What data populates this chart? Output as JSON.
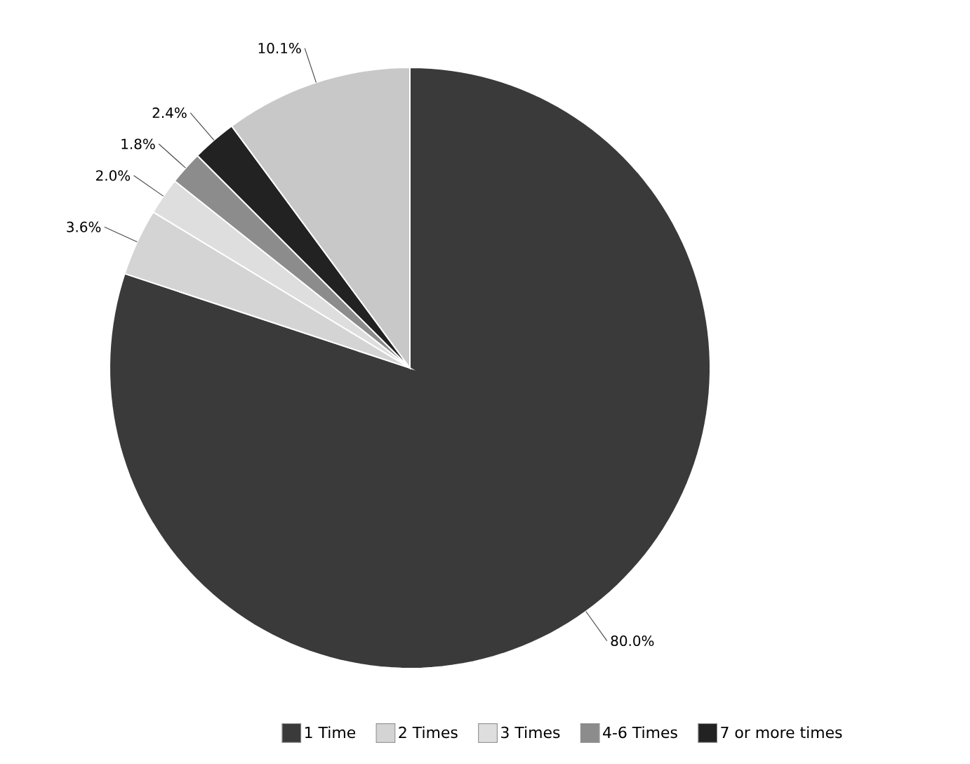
{
  "chart_data": {
    "type": "pie",
    "categories": [
      "1 Time",
      "2 Times",
      "3 Times",
      "4-6 Times",
      "7 or more times",
      null
    ],
    "values": [
      80.0,
      3.6,
      2.0,
      1.8,
      2.4,
      10.1
    ],
    "value_labels": [
      "80.0%",
      "3.6%",
      "2.0%",
      "1.8%",
      "2.4%",
      "10.1%"
    ],
    "colors": [
      "#3a3a3a",
      "#d4d4d4",
      "#dedede",
      "#8c8c8c",
      "#222222",
      "#c8c8c8"
    ],
    "legend": "bottom"
  }
}
